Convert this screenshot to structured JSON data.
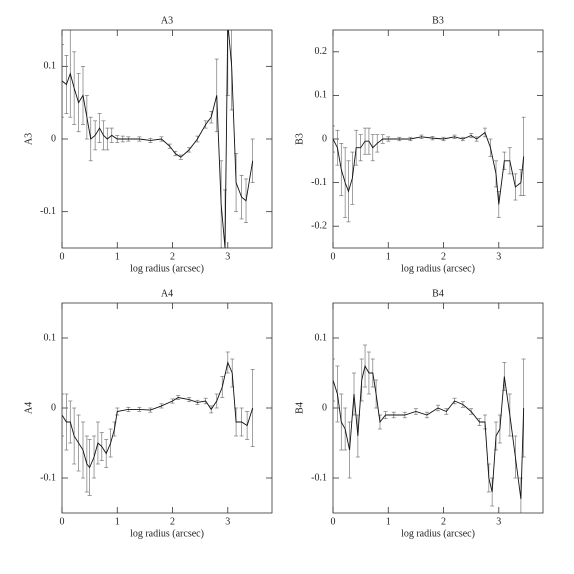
{
  "chart_data": [
    {
      "type": "line",
      "title": "A3",
      "xlabel": "log radius (arcsec)",
      "ylabel": "A3",
      "color": "#111111",
      "error_color": "#777777",
      "xlim": [
        0,
        3.8
      ],
      "ylim": [
        -0.15,
        0.15
      ],
      "xticks": [
        0,
        1,
        2,
        3
      ],
      "yticks": [
        -0.1,
        0,
        0.1
      ],
      "x": [
        0.0,
        0.08,
        0.15,
        0.22,
        0.3,
        0.38,
        0.45,
        0.52,
        0.6,
        0.68,
        0.75,
        0.82,
        0.9,
        1.0,
        1.1,
        1.2,
        1.4,
        1.6,
        1.8,
        1.95,
        2.05,
        2.15,
        2.3,
        2.45,
        2.6,
        2.7,
        2.8,
        2.88,
        2.95,
        3.0,
        3.07,
        3.15,
        3.25,
        3.33,
        3.45
      ],
      "values": [
        0.08,
        0.075,
        0.09,
        0.07,
        0.05,
        0.06,
        0.03,
        0.0,
        0.005,
        0.015,
        0.005,
        0.0,
        0.005,
        0.0,
        0.0,
        0.0,
        0.0,
        -0.002,
        0.0,
        -0.01,
        -0.02,
        -0.025,
        -0.015,
        0.0,
        0.02,
        0.03,
        0.06,
        -0.09,
        -0.15,
        0.16,
        0.1,
        -0.06,
        -0.08,
        -0.085,
        -0.03
      ],
      "errors": [
        0.05,
        0.04,
        0.06,
        0.05,
        0.04,
        0.04,
        0.03,
        0.03,
        0.02,
        0.02,
        0.02,
        0.015,
        0.01,
        0.005,
        0.004,
        0.003,
        0.003,
        0.003,
        0.003,
        0.003,
        0.003,
        0.003,
        0.003,
        0.004,
        0.005,
        0.008,
        0.05,
        0.06,
        0.08,
        0.1,
        0.06,
        0.04,
        0.03,
        0.03,
        0.03
      ]
    },
    {
      "type": "line",
      "title": "B3",
      "xlabel": "log radius (arcsec)",
      "ylabel": "B3",
      "color": "#111111",
      "error_color": "#777777",
      "xlim": [
        0,
        3.8
      ],
      "ylim": [
        -0.25,
        0.25
      ],
      "xticks": [
        0,
        1,
        2,
        3
      ],
      "yticks": [
        -0.2,
        -0.1,
        0,
        0.1,
        0.2
      ],
      "x": [
        0.0,
        0.08,
        0.15,
        0.22,
        0.28,
        0.35,
        0.42,
        0.5,
        0.58,
        0.65,
        0.72,
        0.8,
        0.9,
        1.0,
        1.2,
        1.4,
        1.6,
        1.8,
        2.0,
        2.2,
        2.35,
        2.5,
        2.6,
        2.75,
        2.85,
        2.95,
        3.0,
        3.1,
        3.2,
        3.3,
        3.4,
        3.45
      ],
      "values": [
        0.0,
        -0.02,
        -0.07,
        -0.1,
        -0.12,
        -0.09,
        -0.02,
        -0.02,
        -0.005,
        -0.005,
        -0.02,
        -0.01,
        0.0,
        0.0,
        0.0,
        0.0,
        0.005,
        0.002,
        0.0,
        0.005,
        0.0,
        0.008,
        0.0,
        0.015,
        -0.02,
        -0.08,
        -0.15,
        -0.05,
        -0.05,
        -0.11,
        -0.1,
        -0.04
      ],
      "errors": [
        0.03,
        0.04,
        0.06,
        0.08,
        0.07,
        0.06,
        0.04,
        0.03,
        0.03,
        0.03,
        0.03,
        0.02,
        0.01,
        0.005,
        0.004,
        0.004,
        0.004,
        0.004,
        0.004,
        0.004,
        0.004,
        0.005,
        0.005,
        0.01,
        0.02,
        0.03,
        0.03,
        0.02,
        0.03,
        0.03,
        0.03,
        0.09
      ]
    },
    {
      "type": "line",
      "title": "A4",
      "xlabel": "log radius (arcsec)",
      "ylabel": "A4",
      "color": "#111111",
      "error_color": "#777777",
      "xlim": [
        0,
        3.8
      ],
      "ylim": [
        -0.15,
        0.15
      ],
      "xticks": [
        0,
        1,
        2,
        3
      ],
      "yticks": [
        -0.1,
        0,
        0.1
      ],
      "x": [
        0.0,
        0.08,
        0.15,
        0.22,
        0.3,
        0.38,
        0.45,
        0.5,
        0.58,
        0.65,
        0.72,
        0.8,
        0.88,
        0.95,
        1.0,
        1.2,
        1.4,
        1.6,
        1.8,
        2.0,
        2.1,
        2.3,
        2.45,
        2.6,
        2.7,
        2.8,
        2.9,
        3.0,
        3.08,
        3.15,
        3.25,
        3.35,
        3.45
      ],
      "values": [
        -0.01,
        -0.02,
        -0.02,
        -0.04,
        -0.05,
        -0.06,
        -0.08,
        -0.085,
        -0.07,
        -0.05,
        -0.055,
        -0.065,
        -0.05,
        -0.03,
        -0.005,
        -0.002,
        -0.002,
        -0.003,
        0.003,
        0.01,
        0.015,
        0.012,
        0.008,
        0.01,
        -0.002,
        0.01,
        0.03,
        0.065,
        0.05,
        -0.02,
        -0.02,
        -0.025,
        0.0
      ],
      "errors": [
        0.03,
        0.04,
        0.03,
        0.04,
        0.04,
        0.04,
        0.04,
        0.04,
        0.03,
        0.03,
        0.02,
        0.02,
        0.02,
        0.01,
        0.005,
        0.003,
        0.003,
        0.003,
        0.003,
        0.003,
        0.003,
        0.003,
        0.003,
        0.004,
        0.005,
        0.01,
        0.015,
        0.015,
        0.02,
        0.02,
        0.02,
        0.02,
        0.055
      ]
    },
    {
      "type": "line",
      "title": "B4",
      "xlabel": "log radius (arcsec)",
      "ylabel": "B4",
      "color": "#111111",
      "error_color": "#777777",
      "xlim": [
        0,
        3.8
      ],
      "ylim": [
        -0.15,
        0.15
      ],
      "xticks": [
        0,
        1,
        2,
        3
      ],
      "yticks": [
        -0.1,
        0,
        0.1
      ],
      "x": [
        0.0,
        0.08,
        0.15,
        0.22,
        0.3,
        0.38,
        0.45,
        0.52,
        0.58,
        0.65,
        0.72,
        0.78,
        0.85,
        0.95,
        1.1,
        1.3,
        1.5,
        1.7,
        1.9,
        2.05,
        2.2,
        2.35,
        2.5,
        2.65,
        2.75,
        2.82,
        2.88,
        2.95,
        3.02,
        3.1,
        3.2,
        3.3,
        3.4,
        3.45
      ],
      "values": [
        0.04,
        0.02,
        -0.02,
        -0.03,
        -0.06,
        0.02,
        -0.04,
        0.04,
        0.06,
        0.05,
        0.05,
        0.02,
        -0.02,
        -0.01,
        -0.01,
        -0.01,
        -0.005,
        -0.01,
        0.0,
        -0.005,
        0.01,
        0.005,
        -0.005,
        -0.02,
        -0.02,
        -0.1,
        -0.12,
        -0.04,
        -0.03,
        0.045,
        -0.01,
        -0.07,
        -0.13,
        0.0
      ],
      "errors": [
        0.03,
        0.04,
        0.04,
        0.03,
        0.04,
        0.03,
        0.03,
        0.03,
        0.03,
        0.03,
        0.02,
        0.02,
        0.01,
        0.005,
        0.004,
        0.004,
        0.004,
        0.004,
        0.004,
        0.004,
        0.004,
        0.004,
        0.004,
        0.005,
        0.01,
        0.02,
        0.02,
        0.02,
        0.02,
        0.02,
        0.03,
        0.03,
        0.03,
        0.07
      ]
    }
  ]
}
